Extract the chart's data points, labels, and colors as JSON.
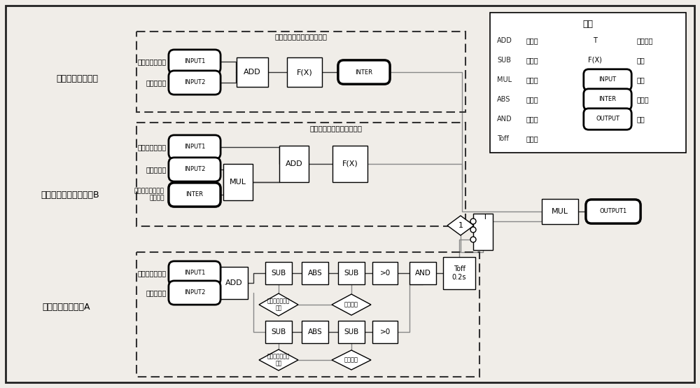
{
  "bg_color": "#f0ede8",
  "border_color": "#222222",
  "box_fc": "#ffffff",
  "line_color": "#444444",
  "gray_line": "#888888",
  "legend_title": "示例",
  "legend_rows": [
    [
      "ADD",
      "加法器",
      "T",
      "条件转换"
    ],
    [
      "SUB",
      "减法器",
      "F(X)",
      "函数"
    ],
    [
      "MUL",
      "乘法器",
      "INPUT",
      "输入"
    ],
    [
      "ABS",
      "绝对值",
      "INTER",
      "中间值"
    ],
    [
      "AND",
      "逻辑与",
      "OUTPUT",
      "输出"
    ],
    [
      "Toff",
      "延时器",
      "",
      ""
    ]
  ],
  "section_labels": [
    "一次调频控制电路",
    "非线性区二次补偿模块B",
    "非线性区判断模块A"
  ],
  "top_label": "阀门非线性区一次补偿函数",
  "mid_label": "阀门非线性区二次补偿函数"
}
